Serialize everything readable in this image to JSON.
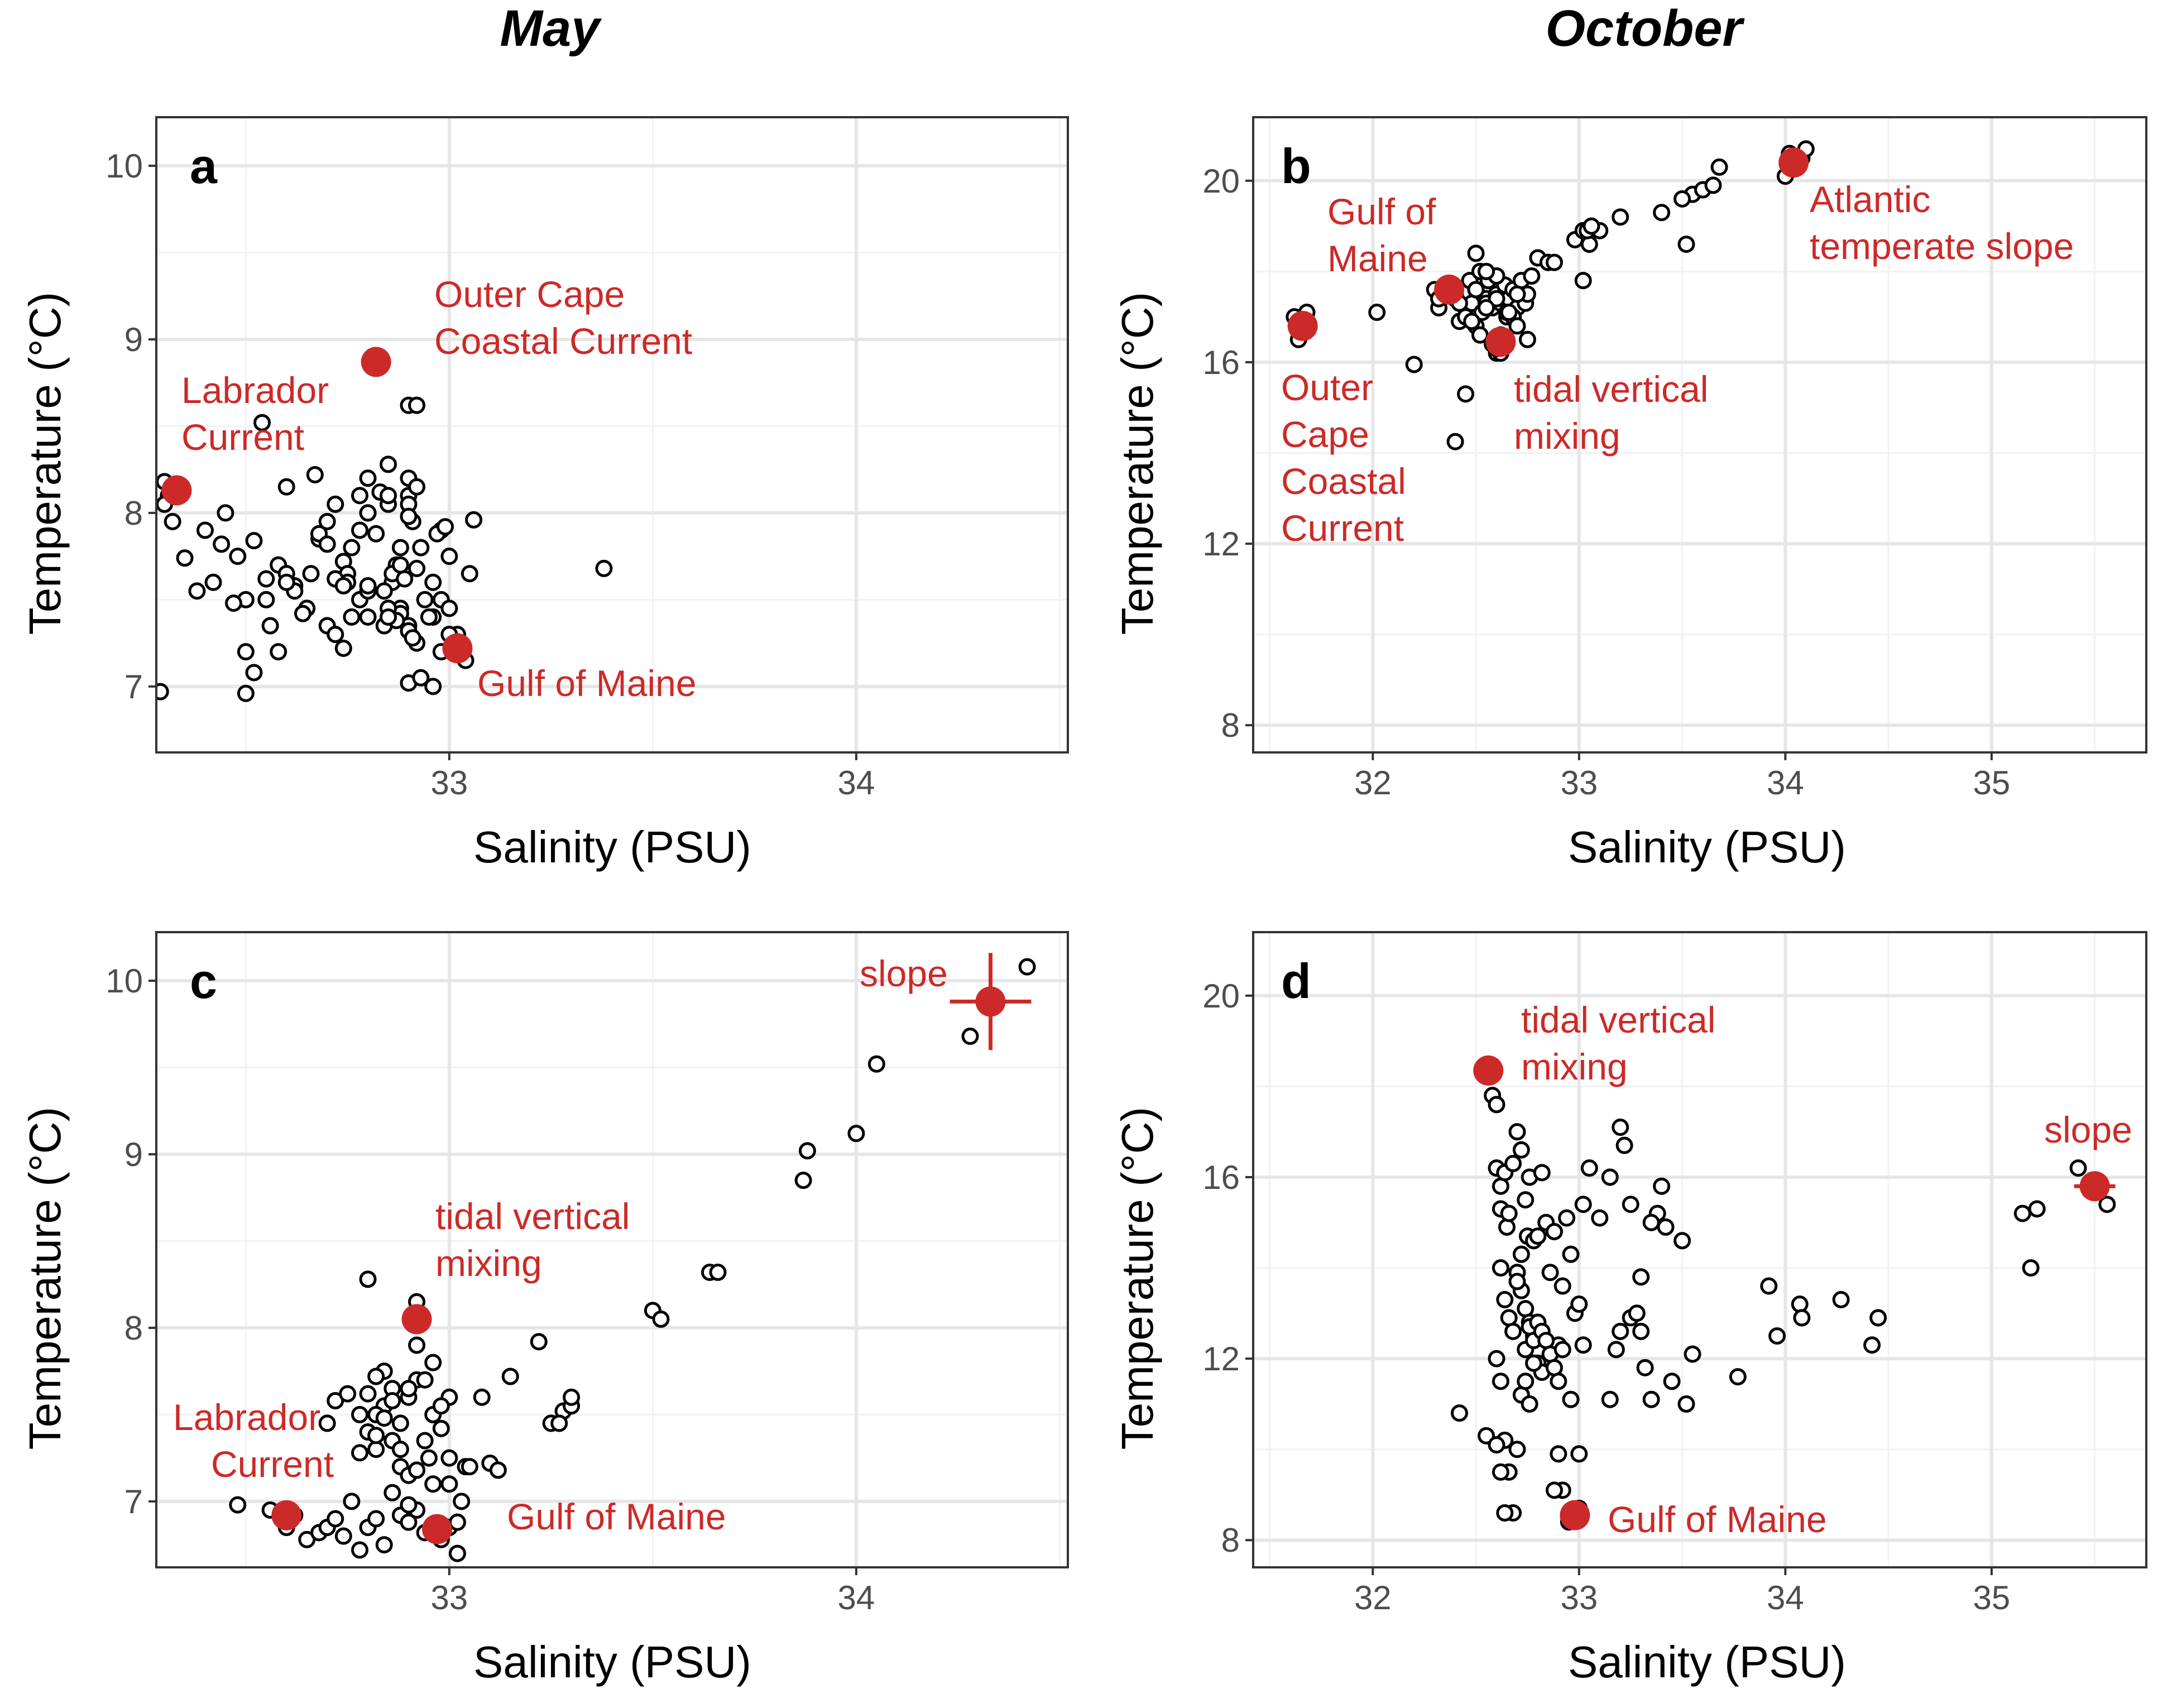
{
  "column_titles": [
    "May",
    "October"
  ],
  "colors": {
    "observation": "#000000",
    "source": "#cc2a28",
    "grid": "#e6e6e6"
  },
  "chart_data": [
    {
      "type": "scatter",
      "panel": "a",
      "xlabel": "Salinity (PSU)",
      "ylabel": "Temperature (°C)",
      "xlim": [
        32.28,
        34.52
      ],
      "ylim": [
        6.62,
        10.28
      ],
      "xticks": [
        33,
        34
      ],
      "yticks": [
        7,
        8,
        9,
        10
      ],
      "grid": true,
      "observations": {
        "x": [
          32.3,
          32.31,
          32.29,
          32.32,
          32.3,
          32.35,
          32.38,
          32.4,
          32.42,
          32.45,
          32.44,
          32.48,
          32.5,
          32.47,
          32.52,
          32.55,
          32.58,
          32.54,
          32.6,
          32.62,
          32.65,
          32.67,
          32.68,
          32.7,
          32.72,
          32.72,
          32.74,
          32.75,
          32.76,
          32.78,
          32.78,
          32.8,
          32.8,
          32.82,
          32.83,
          32.85,
          32.85,
          32.86,
          32.87,
          32.88,
          32.9,
          32.9,
          32.91,
          32.92,
          32.93,
          32.75,
          32.78,
          32.8,
          32.84,
          32.86,
          32.88,
          32.9,
          32.92,
          32.94,
          32.96,
          32.98,
          32.7,
          32.72,
          32.74,
          32.76,
          32.8,
          32.84,
          32.88,
          32.9,
          32.92,
          32.96,
          32.98,
          33.0,
          33.02,
          32.85,
          32.87,
          32.89,
          32.91,
          32.95,
          32.97,
          32.99,
          33.0,
          33.05,
          33.06,
          32.8,
          32.85,
          32.88,
          32.9,
          32.93,
          32.96,
          33.0,
          32.68,
          32.7,
          32.72,
          32.74,
          32.66,
          32.64,
          32.62,
          32.58,
          32.56,
          32.6,
          32.52,
          32.5,
          32.5,
          32.3,
          32.82,
          32.9,
          32.92,
          33.38,
          32.9,
          32.8,
          32.85,
          32.9,
          32.55,
          32.6,
          32.98,
          33.04
        ],
        "y": [
          8.18,
          8.1,
          6.97,
          7.95,
          8.05,
          7.74,
          7.55,
          7.9,
          7.6,
          8.0,
          7.82,
          7.75,
          7.5,
          7.48,
          7.84,
          7.62,
          7.7,
          8.52,
          8.15,
          7.58,
          7.45,
          8.22,
          7.85,
          7.95,
          8.05,
          7.62,
          7.72,
          7.65,
          7.8,
          7.9,
          8.1,
          8.0,
          8.2,
          7.88,
          8.12,
          8.05,
          8.28,
          7.6,
          7.7,
          7.8,
          8.1,
          8.2,
          7.95,
          8.15,
          7.8,
          7.6,
          7.5,
          7.4,
          7.55,
          7.65,
          7.45,
          7.35,
          7.25,
          7.5,
          7.4,
          7.9,
          7.35,
          7.3,
          7.22,
          7.4,
          7.55,
          7.35,
          7.42,
          7.32,
          7.68,
          7.6,
          7.5,
          7.45,
          7.3,
          7.45,
          7.38,
          7.62,
          7.28,
          7.4,
          7.88,
          7.92,
          7.75,
          7.65,
          7.96,
          7.58,
          7.4,
          7.7,
          7.02,
          7.05,
          7.0,
          7.3,
          7.88,
          7.82,
          7.62,
          7.58,
          7.65,
          7.42,
          7.55,
          7.2,
          7.35,
          7.65,
          7.08,
          6.96,
          7.2,
          8.18,
          8.88,
          8.62,
          8.62,
          7.68,
          8.05,
          8.0,
          8.1,
          7.98,
          7.5,
          7.6,
          7.2,
          7.15
        ]
      },
      "sources": [
        {
          "name": "Labrador Current",
          "x": 32.33,
          "y": 8.13
        },
        {
          "name": "Outer Cape Coastal Current",
          "x": 32.82,
          "y": 8.87
        },
        {
          "name": "Gulf of Maine",
          "x": 33.02,
          "y": 7.22
        }
      ],
      "annotations": [
        "Labrador",
        "Current",
        "Outer Cape",
        "Coastal Current",
        "Gulf of Maine"
      ]
    },
    {
      "type": "scatter",
      "panel": "b",
      "xlabel": "Salinity (PSU)",
      "ylabel": "Temperature (°C)",
      "xlim": [
        31.42,
        35.75
      ],
      "ylim": [
        7.4,
        21.4
      ],
      "xticks": [
        32,
        33,
        34,
        35
      ],
      "yticks": [
        8,
        12,
        16,
        20
      ],
      "grid": true,
      "observations": {
        "x": [
          31.62,
          31.66,
          31.64,
          31.68,
          32.02,
          32.2,
          32.3,
          32.32,
          32.35,
          32.4,
          32.42,
          32.45,
          32.47,
          32.48,
          32.5,
          32.52,
          32.53,
          32.55,
          32.56,
          32.58,
          32.6,
          32.6,
          32.62,
          32.64,
          32.65,
          32.66,
          32.68,
          32.7,
          32.72,
          32.74,
          32.75,
          32.77,
          32.8,
          32.4,
          32.45,
          32.5,
          32.55,
          32.6,
          32.65,
          32.7,
          32.5,
          32.55,
          32.6,
          32.62,
          32.68,
          32.5,
          32.55,
          32.6,
          32.45,
          32.4,
          32.42,
          32.48,
          32.52,
          32.58,
          32.62,
          32.66,
          32.7,
          32.35,
          32.32,
          32.85,
          32.88,
          32.98,
          33.02,
          33.05,
          33.1,
          33.2,
          33.02,
          33.04,
          33.06,
          33.4,
          33.52,
          33.55,
          33.6,
          33.65,
          33.68,
          34.0,
          34.02,
          34.08,
          34.1,
          33.5,
          32.6,
          32.75
        ],
        "y": [
          17.0,
          16.8,
          16.5,
          17.1,
          17.1,
          15.95,
          17.6,
          17.2,
          17.7,
          17.5,
          16.9,
          17.2,
          17.8,
          17.3,
          17.6,
          18.0,
          17.1,
          17.4,
          17.8,
          17.2,
          17.5,
          17.9,
          17.3,
          17.7,
          17.0,
          17.4,
          17.6,
          17.2,
          17.8,
          17.3,
          17.5,
          17.9,
          18.3,
          17.4,
          17.0,
          17.6,
          17.3,
          17.9,
          17.1,
          17.5,
          18.4,
          18.0,
          17.4,
          16.6,
          17.0,
          16.8,
          17.2,
          16.2,
          15.3,
          14.25,
          17.3,
          16.9,
          16.6,
          16.4,
          16.2,
          17.1,
          16.8,
          17.7,
          17.4,
          18.2,
          18.2,
          18.7,
          18.9,
          18.6,
          18.9,
          19.2,
          17.8,
          18.9,
          19.0,
          19.3,
          18.6,
          19.7,
          19.8,
          19.9,
          20.3,
          20.1,
          20.6,
          20.5,
          20.7,
          19.6,
          16.3,
          16.5
        ]
      },
      "sources": [
        {
          "name": "Gulf of Maine",
          "x": 32.37,
          "y": 17.6
        },
        {
          "name": "Outer Cape Coastal Current",
          "x": 31.66,
          "y": 16.8
        },
        {
          "name": "tidal vertical mixing",
          "x": 32.62,
          "y": 16.45
        },
        {
          "name": "Atlantic temperate slope",
          "x": 34.04,
          "y": 20.4
        }
      ],
      "annotations": [
        "Gulf of",
        "Maine",
        "Outer",
        "Cape",
        "Coastal",
        "Current",
        "tidal vertical",
        "mixing",
        "Atlantic",
        "temperate slope"
      ]
    },
    {
      "type": "scatter",
      "panel": "c",
      "xlabel": "Salinity (PSU)",
      "ylabel": "Temperature (°C)",
      "xlim": [
        32.28,
        34.52
      ],
      "ylim": [
        6.62,
        10.28
      ],
      "xticks": [
        33,
        34
      ],
      "yticks": [
        7,
        8,
        9,
        10
      ],
      "grid": true,
      "observations": {
        "x": [
          32.48,
          32.56,
          32.6,
          32.62,
          32.65,
          32.68,
          32.7,
          32.72,
          32.74,
          32.76,
          32.78,
          32.8,
          32.82,
          32.84,
          32.86,
          32.88,
          32.9,
          32.92,
          32.94,
          32.96,
          32.98,
          33.0,
          33.02,
          33.04,
          32.7,
          32.72,
          32.75,
          32.78,
          32.8,
          32.82,
          32.84,
          32.86,
          32.88,
          32.9,
          32.92,
          32.94,
          32.96,
          32.98,
          33.0,
          32.8,
          32.84,
          32.88,
          32.92,
          32.96,
          33.0,
          32.82,
          32.86,
          32.9,
          32.94,
          32.98,
          32.78,
          32.82,
          32.84,
          32.88,
          32.9,
          32.92,
          32.95,
          33.0,
          33.03,
          33.05,
          33.1,
          33.12,
          33.08,
          33.15,
          33.22,
          33.25,
          33.28,
          33.3,
          33.3,
          33.27,
          33.5,
          33.52,
          33.64,
          33.66,
          33.87,
          33.88,
          34.0,
          34.05,
          34.28,
          34.42,
          32.8,
          32.92,
          32.82,
          32.86,
          33.02,
          32.9
        ],
        "y": [
          6.98,
          6.95,
          6.85,
          6.92,
          6.78,
          6.82,
          6.85,
          6.9,
          6.8,
          7.0,
          6.72,
          6.85,
          6.9,
          6.75,
          7.05,
          6.92,
          6.88,
          6.95,
          6.82,
          7.1,
          6.78,
          6.85,
          6.7,
          7.2,
          7.45,
          7.58,
          7.62,
          7.5,
          7.4,
          7.3,
          7.55,
          7.65,
          7.45,
          7.6,
          7.7,
          7.35,
          7.5,
          7.42,
          7.6,
          7.62,
          7.75,
          7.2,
          7.9,
          7.8,
          7.25,
          7.5,
          7.35,
          7.65,
          7.7,
          7.55,
          7.28,
          7.38,
          7.48,
          7.3,
          7.15,
          7.18,
          7.25,
          7.1,
          7.0,
          7.2,
          7.22,
          7.18,
          7.6,
          7.72,
          7.92,
          7.45,
          7.52,
          7.55,
          7.6,
          7.45,
          8.1,
          8.05,
          8.32,
          8.32,
          8.85,
          9.02,
          9.12,
          9.52,
          9.68,
          10.08,
          8.28,
          8.15,
          7.72,
          7.58,
          6.88,
          6.98
        ]
      },
      "sources": [
        {
          "name": "Labrador Current",
          "x": 32.6,
          "y": 6.92
        },
        {
          "name": "tidal vertical mixing",
          "x": 32.92,
          "y": 8.05
        },
        {
          "name": "Gulf of Maine",
          "x": 32.97,
          "y": 6.84
        },
        {
          "name": "slope",
          "x": 34.33,
          "y": 9.88,
          "xerr": 0.1,
          "yerr": 0.28
        }
      ],
      "annotations": [
        "Labrador",
        "Current",
        "tidal vertical",
        "mixing",
        "Gulf of Maine",
        "slope"
      ]
    },
    {
      "type": "scatter",
      "panel": "d",
      "xlabel": "Salinity (PSU)",
      "ylabel": "Temperature (°C)",
      "xlim": [
        31.42,
        35.75
      ],
      "ylim": [
        7.4,
        21.4
      ],
      "xticks": [
        32,
        33,
        34,
        35
      ],
      "yticks": [
        8,
        12,
        16,
        20
      ],
      "grid": true,
      "observations": {
        "x": [
          32.58,
          32.6,
          32.6,
          32.62,
          32.62,
          32.64,
          32.65,
          32.66,
          32.68,
          32.7,
          32.72,
          32.74,
          32.75,
          32.76,
          32.78,
          32.8,
          32.82,
          32.84,
          32.86,
          32.88,
          32.9,
          32.92,
          32.94,
          32.96,
          32.98,
          32.7,
          32.72,
          32.74,
          32.76,
          32.78,
          32.62,
          32.64,
          32.66,
          32.68,
          32.7,
          32.72,
          32.74,
          32.76,
          32.78,
          32.8,
          32.82,
          32.6,
          32.62,
          32.64,
          32.66,
          32.68,
          32.7,
          32.72,
          32.74,
          32.76,
          32.78,
          32.8,
          32.82,
          32.84,
          32.86,
          32.88,
          32.9,
          32.92,
          32.96,
          33.0,
          33.02,
          33.05,
          33.1,
          33.15,
          33.18,
          33.2,
          33.22,
          33.25,
          33.28,
          33.3,
          33.32,
          33.35,
          33.38,
          33.4,
          33.42,
          33.45,
          33.5,
          33.52,
          33.55,
          33.3,
          33.35,
          33.2,
          33.15,
          33.25,
          33.77,
          33.92,
          33.96,
          34.07,
          34.08,
          34.27,
          34.42,
          34.45,
          35.15,
          35.19,
          35.22,
          35.42,
          35.56,
          32.42,
          32.55,
          32.6,
          32.62,
          32.64,
          32.9,
          32.92,
          32.95,
          33.0,
          32.88,
          33.0,
          32.95,
          33.02
        ],
        "y": [
          17.8,
          17.6,
          16.2,
          15.8,
          15.3,
          16.1,
          14.9,
          15.2,
          16.3,
          17.0,
          16.6,
          15.5,
          14.7,
          16.0,
          14.6,
          14.7,
          16.1,
          15.0,
          13.9,
          14.8,
          12.3,
          13.6,
          15.1,
          14.3,
          13.0,
          13.9,
          13.5,
          13.1,
          12.8,
          12.5,
          14.0,
          13.3,
          12.9,
          12.6,
          13.7,
          14.3,
          12.2,
          12.7,
          12.4,
          11.9,
          11.7,
          12.0,
          11.5,
          10.2,
          9.5,
          8.6,
          10.0,
          11.2,
          11.5,
          11.0,
          11.9,
          12.8,
          12.6,
          12.4,
          12.1,
          11.8,
          11.5,
          12.2,
          11.1,
          13.2,
          12.3,
          16.2,
          15.1,
          11.1,
          12.2,
          17.1,
          16.7,
          12.9,
          13.0,
          12.6,
          11.8,
          11.1,
          15.2,
          15.8,
          14.9,
          11.5,
          14.6,
          11.0,
          12.1,
          13.8,
          15.0,
          12.6,
          16.0,
          15.4,
          11.6,
          13.6,
          12.5,
          13.2,
          12.9,
          13.3,
          12.3,
          12.9,
          15.2,
          14.0,
          15.3,
          16.2,
          15.4,
          10.8,
          10.3,
          10.1,
          9.5,
          8.6,
          9.9,
          9.1,
          8.5,
          8.7,
          9.1,
          9.9,
          8.4,
          15.4
        ]
      },
      "sources": [
        {
          "name": "tidal vertical mixing",
          "x": 32.56,
          "y": 18.35
        },
        {
          "name": "Gulf of Maine",
          "x": 32.98,
          "y": 8.55
        },
        {
          "name": "slope",
          "x": 35.5,
          "y": 15.8,
          "xerr": 0.1,
          "yerr": 0.28
        }
      ],
      "annotations": [
        "tidal vertical",
        "mixing",
        "Gulf of Maine",
        "slope"
      ]
    }
  ]
}
